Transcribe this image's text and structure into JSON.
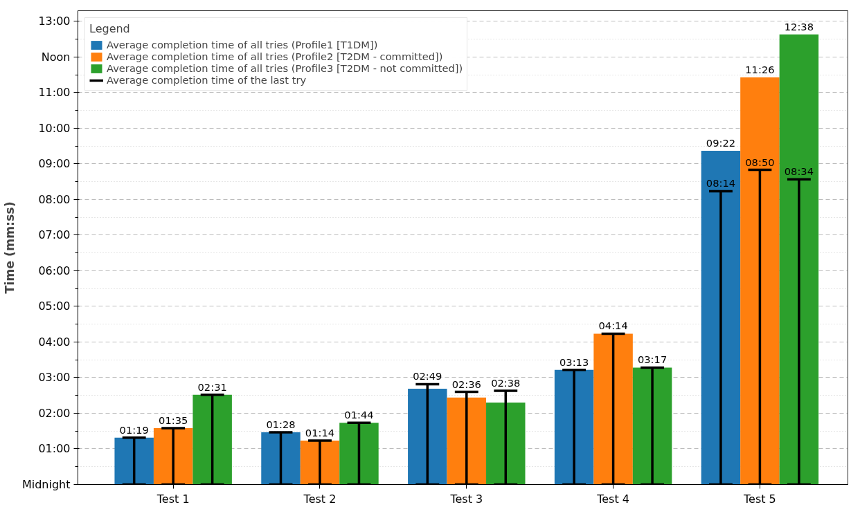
{
  "chart_data": {
    "type": "bar",
    "ylabel": "Time (mm:ss)",
    "legend_title": "Legend",
    "legend": "top left",
    "grid": "y",
    "categories": [
      "Test 1",
      "Test 2",
      "Test 3",
      "Test 4",
      "Test 5"
    ],
    "ylim": [
      0,
      13.3
    ],
    "yticks": [
      {
        "value": 0,
        "label": "Midnight"
      },
      {
        "value": 1,
        "label": "01:00"
      },
      {
        "value": 2,
        "label": "02:00"
      },
      {
        "value": 3,
        "label": "03:00"
      },
      {
        "value": 4,
        "label": "04:00"
      },
      {
        "value": 5,
        "label": "05:00"
      },
      {
        "value": 6,
        "label": "06:00"
      },
      {
        "value": 7,
        "label": "07:00"
      },
      {
        "value": 8,
        "label": "08:00"
      },
      {
        "value": 9,
        "label": "09:00"
      },
      {
        "value": 10,
        "label": "10:00"
      },
      {
        "value": 11,
        "label": "11:00"
      },
      {
        "value": 12,
        "label": "Noon"
      },
      {
        "value": 13,
        "label": "13:00"
      }
    ],
    "series": [
      {
        "name": "Average completion time of all tries (Profile1 [T1DM])",
        "color": "#1f77b4",
        "values": [
          1.317,
          1.467,
          2.69,
          3.217,
          9.367
        ],
        "value_labels": [
          "01:19",
          "01:28",
          null,
          "03:13",
          "09:22"
        ],
        "errors": [
          [
            0,
            1.317
          ],
          [
            0,
            1.467
          ],
          [
            0,
            2.817
          ],
          [
            0,
            3.217
          ],
          [
            0,
            8.233
          ]
        ]
      },
      {
        "name": "Average completion time of all tries (Profile2 [T2DM - committed])",
        "color": "#ff7f0e",
        "values": [
          1.583,
          1.233,
          2.44,
          4.233,
          11.433
        ],
        "value_labels": [
          "01:35",
          "01:14",
          null,
          "04:14",
          "11:26"
        ],
        "errors": [
          [
            0,
            1.583
          ],
          [
            0,
            1.233
          ],
          [
            0,
            2.6
          ],
          [
            0,
            4.233
          ],
          [
            0,
            8.833
          ]
        ]
      },
      {
        "name": "Average completion time of all tries (Profile3 [T2DM - not committed])",
        "color": "#2ca02c",
        "values": [
          2.517,
          1.733,
          2.3,
          3.283,
          12.633
        ],
        "value_labels": [
          "02:31",
          "01:44",
          null,
          "03:17",
          "12:38"
        ],
        "errors": [
          [
            0,
            2.517
          ],
          [
            0,
            1.733
          ],
          [
            0,
            2.633
          ],
          [
            0,
            3.283
          ],
          [
            0,
            8.567
          ]
        ]
      }
    ],
    "annotations": [
      "Average completion time of the last try",
      {
        "text": "02:49",
        "y": 2.817
      },
      {
        "text": "02:36",
        "y": 2.6
      },
      {
        "text": "02:38",
        "y": 2.633
      },
      {
        "text": "08:14",
        "y": 8.233
      },
      {
        "text": "08:50",
        "y": 8.833
      },
      {
        "text": "08:34",
        "y": 8.567
      }
    ]
  }
}
